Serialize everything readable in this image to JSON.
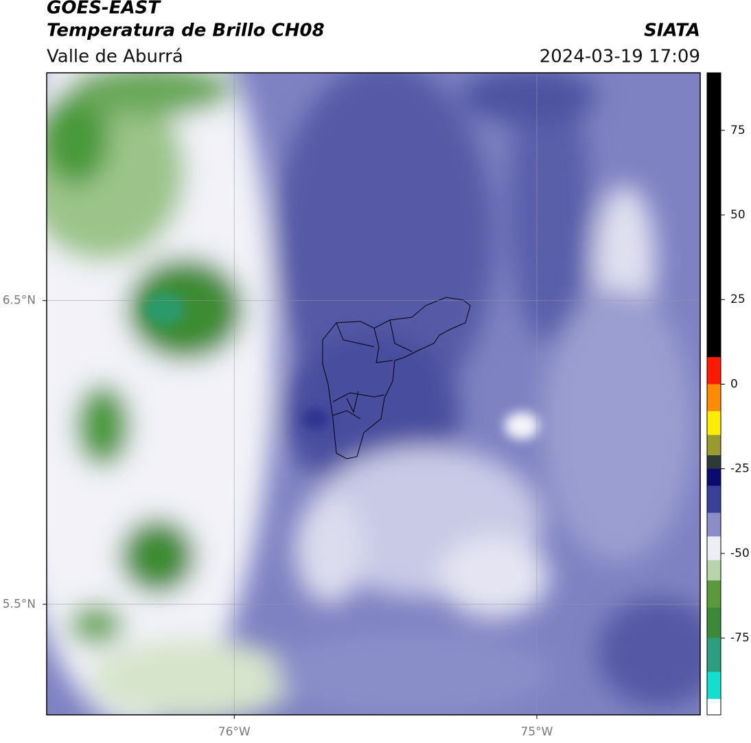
{
  "chart_data": {
    "type": "map",
    "title": "GOES-EAST",
    "subtitle": "Temperatura de Brillo CH08",
    "region": "Valle de Aburrá",
    "source": "SIATA",
    "datetime": "2024-03-19 17:09",
    "xlim": [
      -76.62,
      -74.46
    ],
    "ylim": [
      5.136,
      7.25
    ],
    "xticks": [
      {
        "value": -76,
        "label": "76°W"
      },
      {
        "value": -75,
        "label": "75°W"
      }
    ],
    "yticks": [
      {
        "value": 6.5,
        "label": "6.5°N"
      },
      {
        "value": 5.5,
        "label": "5.5°N"
      }
    ],
    "grid": true,
    "colorbar": {
      "lim": [
        -97.7,
        92
      ],
      "ticks": [
        75,
        50,
        25,
        0,
        -25,
        -50,
        -75
      ],
      "segments": [
        {
          "from": 8,
          "to": 92,
          "color": "#000000"
        },
        {
          "from": 0,
          "to": 8,
          "color": "#ff1a00"
        },
        {
          "from": -8,
          "to": 0,
          "color": "#ff8c00"
        },
        {
          "from": -15,
          "to": -8,
          "color": "#ffee00"
        },
        {
          "from": -21,
          "to": -15,
          "color": "#9a9a30"
        },
        {
          "from": -25,
          "to": -21,
          "color": "#2d3a3a"
        },
        {
          "from": -30,
          "to": -25,
          "color": "#0a0a70"
        },
        {
          "from": -38,
          "to": -30,
          "color": "#3a3f9a"
        },
        {
          "from": -45,
          "to": -38,
          "color": "#8a8ec8"
        },
        {
          "from": -52,
          "to": -45,
          "color": "#eeeef6"
        },
        {
          "from": -58,
          "to": -52,
          "color": "#b8d4a8"
        },
        {
          "from": -66,
          "to": -58,
          "color": "#5a9a3a"
        },
        {
          "from": -75,
          "to": -66,
          "color": "#3a8a3a"
        },
        {
          "from": -85,
          "to": -75,
          "color": "#2aa080"
        },
        {
          "from": -93,
          "to": -85,
          "color": "#10e0d0"
        },
        {
          "from": -97.7,
          "to": -93,
          "color": "#ffffff"
        }
      ]
    }
  }
}
